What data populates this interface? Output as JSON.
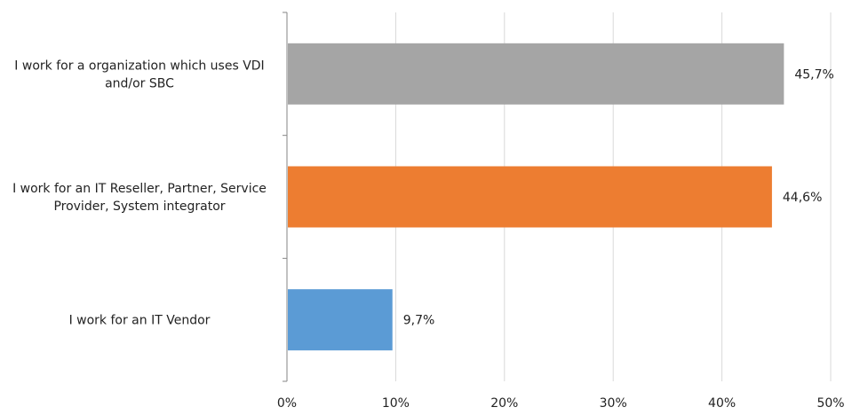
{
  "chart_data": {
    "type": "bar",
    "orientation": "horizontal",
    "title": "",
    "xlabel": "",
    "ylabel": "",
    "xlim": [
      0,
      50
    ],
    "x_ticks": [
      "0%",
      "10%",
      "20%",
      "30%",
      "40%",
      "50%"
    ],
    "grid": "vertical",
    "legend": "none",
    "categories": [
      "I work for a organization which uses VDI and/or SBC",
      "I work for an IT Reseller, Partner, Service Provider, System integrator",
      "I work for an IT Vendor"
    ],
    "category_lines": [
      [
        "I work for a organization which uses VDI",
        "and/or SBC"
      ],
      [
        "I work for an IT Reseller, Partner, Service",
        "Provider, System integrator"
      ],
      [
        "I work for an IT Vendor"
      ]
    ],
    "values": [
      45.7,
      44.6,
      9.7
    ],
    "value_labels": [
      "45,7%",
      "44,6%",
      "9,7%"
    ],
    "colors": [
      "#a5a5a5",
      "#ed7d31",
      "#5b9bd5"
    ]
  },
  "colors": {
    "gridline": "#d9d9d9",
    "axis": "#868686"
  }
}
